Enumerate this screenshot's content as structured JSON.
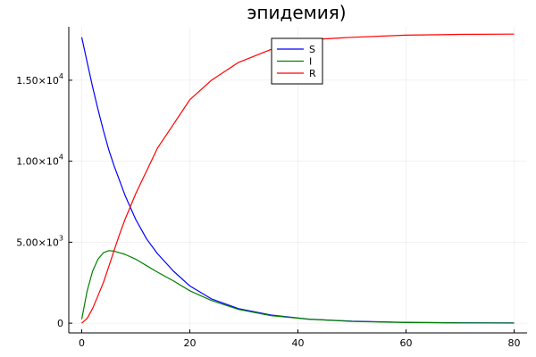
{
  "chart_data": {
    "type": "line",
    "title": "эпидемия)",
    "xlabel": "",
    "ylabel": "",
    "xlim": [
      -2.4,
      82.4
    ],
    "ylim": [
      -600,
      18300
    ],
    "grid": true,
    "legend_position": "top-center",
    "x_ticks": [
      {
        "value": 0,
        "label": "0"
      },
      {
        "value": 20,
        "label": "20"
      },
      {
        "value": 40,
        "label": "40"
      },
      {
        "value": 60,
        "label": "60"
      },
      {
        "value": 80,
        "label": "80"
      }
    ],
    "y_ticks": [
      {
        "value": 0,
        "mantissa": "0",
        "exponent": ""
      },
      {
        "value": 5000,
        "mantissa": "5.00×10",
        "exponent": "3"
      },
      {
        "value": 10000,
        "mantissa": "1.00×10",
        "exponent": "4"
      },
      {
        "value": 15000,
        "mantissa": "1.50×10",
        "exponent": "4"
      }
    ],
    "x": [
      0,
      1,
      2,
      3,
      4,
      5,
      6,
      7,
      8,
      10,
      12,
      14,
      17,
      20,
      24,
      29,
      35,
      42,
      50,
      60,
      70,
      80
    ],
    "series": [
      {
        "name": "S",
        "color": "#0000ff",
        "values": [
          17650,
          16100,
          14600,
          13200,
          11900,
          10700,
          9700,
          8800,
          7900,
          6400,
          5200,
          4300,
          3200,
          2300,
          1500,
          900,
          500,
          250,
          120,
          50,
          20,
          10
        ]
      },
      {
        "name": "I",
        "color": "#008000",
        "values": [
          250,
          2000,
          3200,
          3950,
          4350,
          4480,
          4450,
          4350,
          4250,
          3950,
          3550,
          3150,
          2600,
          2000,
          1400,
          850,
          470,
          250,
          110,
          40,
          15,
          5
        ]
      },
      {
        "name": "R",
        "color": "#ff0000",
        "values": [
          0,
          300,
          900,
          1700,
          2500,
          3500,
          4500,
          5500,
          6400,
          8000,
          9400,
          10800,
          12300,
          13800,
          15000,
          16100,
          16900,
          17500,
          17650,
          17780,
          17830,
          17850
        ]
      }
    ]
  }
}
